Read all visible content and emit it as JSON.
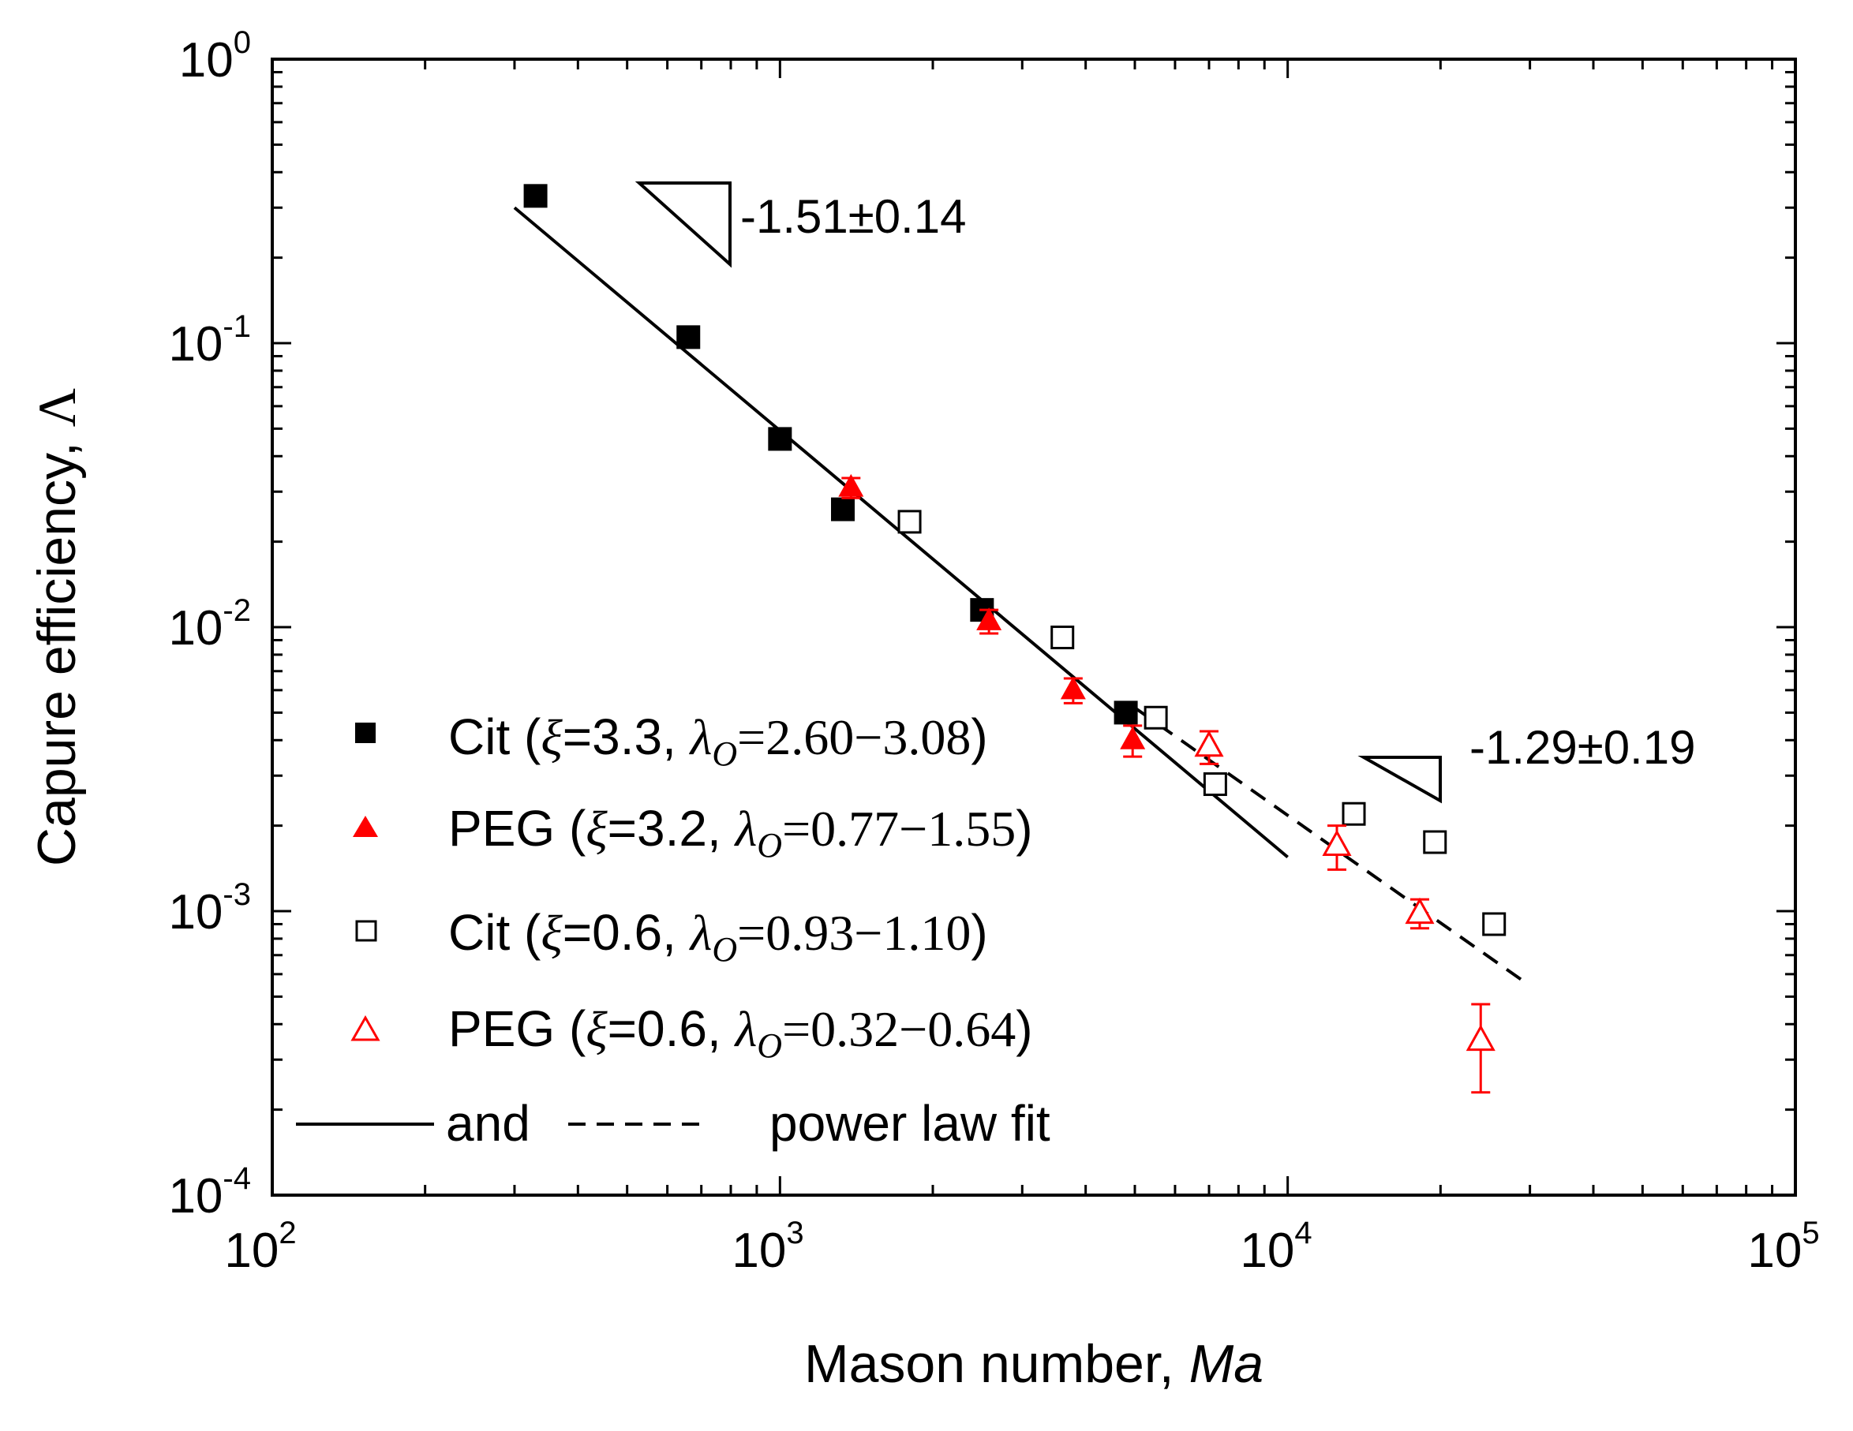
{
  "chart_data": {
    "type": "scatter",
    "xscale": "log",
    "yscale": "log",
    "xlabel": "Mason number, ",
    "xlabel_italic": "Ma",
    "ylabel": "Capure efficiency, ",
    "ylabel_symbol": "Λ",
    "xlim": [
      100,
      100000
    ],
    "ylim": [
      0.0001,
      1
    ],
    "x_ticks": [
      {
        "value": 100,
        "base": "10",
        "exp": "2"
      },
      {
        "value": 1000,
        "base": "10",
        "exp": "3"
      },
      {
        "value": 10000,
        "base": "10",
        "exp": "4"
      },
      {
        "value": 100000,
        "base": "10",
        "exp": "5"
      }
    ],
    "y_ticks": [
      {
        "value": 1,
        "base": "10",
        "exp": "0"
      },
      {
        "value": 0.1,
        "base": "10",
        "exp": "-1"
      },
      {
        "value": 0.01,
        "base": "10",
        "exp": "-2"
      },
      {
        "value": 0.001,
        "base": "10",
        "exp": "-3"
      },
      {
        "value": 0.0001,
        "base": "10",
        "exp": "-4"
      }
    ],
    "series": [
      {
        "name": "Cit (ξ=3.3, λO=2.60−3.08)",
        "label_prefix": "Cit (",
        "xi_value": "=3.3, ",
        "lambda_value": "=2.60−3.08",
        "label_suffix": ")",
        "marker": "filled-square",
        "color": "#000000",
        "points": [
          {
            "x": 330,
            "y": 0.33
          },
          {
            "x": 660,
            "y": 0.105
          },
          {
            "x": 1000,
            "y": 0.046
          },
          {
            "x": 1330,
            "y": 0.026
          },
          {
            "x": 2500,
            "y": 0.0115
          },
          {
            "x": 4800,
            "y": 0.005
          }
        ]
      },
      {
        "name": "PEG (ξ=3.2, λO=0.77−1.55)",
        "label_prefix": "PEG (",
        "xi_value": "=3.2, ",
        "lambda_value": "=0.77−1.55",
        "label_suffix": ")",
        "marker": "filled-triangle",
        "color": "#ff0000",
        "points": [
          {
            "x": 1380,
            "y": 0.031,
            "yerr": [
              0.0285,
              0.0335
            ]
          },
          {
            "x": 2580,
            "y": 0.0105,
            "yerr": [
              0.0095,
              0.0115
            ]
          },
          {
            "x": 3780,
            "y": 0.006,
            "yerr": [
              0.0054,
              0.0066
            ]
          },
          {
            "x": 4950,
            "y": 0.004,
            "yerr": [
              0.0035,
              0.0045
            ]
          }
        ]
      },
      {
        "name": "Cit (ξ=0.6, λO=0.93−1.10)",
        "label_prefix": "Cit (",
        "xi_value": "=0.6, ",
        "lambda_value": "=0.93−1.10",
        "label_suffix": ")",
        "marker": "open-square",
        "color": "#000000",
        "points": [
          {
            "x": 1800,
            "y": 0.0235
          },
          {
            "x": 3600,
            "y": 0.0092
          },
          {
            "x": 5500,
            "y": 0.0048
          },
          {
            "x": 7200,
            "y": 0.0028
          },
          {
            "x": 13500,
            "y": 0.0022
          },
          {
            "x": 19500,
            "y": 0.00175
          },
          {
            "x": 25500,
            "y": 0.0009
          }
        ]
      },
      {
        "name": "PEG (ξ=0.6, λO=0.32−0.64)",
        "label_prefix": "PEG (",
        "xi_value": "=0.6, ",
        "lambda_value": "=0.32−0.64",
        "label_suffix": ")",
        "marker": "open-triangle",
        "color": "#ff0000",
        "points": [
          {
            "x": 7000,
            "y": 0.0038,
            "yerr": [
              0.0033,
              0.0043
            ]
          },
          {
            "x": 12500,
            "y": 0.0017,
            "yerr": [
              0.0014,
              0.002
            ]
          },
          {
            "x": 18200,
            "y": 0.00098,
            "yerr": [
              0.00087,
              0.0011
            ]
          },
          {
            "x": 24000,
            "y": 0.00035,
            "yerr": [
              0.00023,
              0.00047
            ]
          }
        ]
      }
    ],
    "fits": [
      {
        "name": "power law fit (solid)",
        "style": "solid",
        "x": [
          300,
          10000
        ],
        "y": [
          0.3,
          0.00155
        ]
      },
      {
        "name": "power law fit (dashed)",
        "style": "dashed",
        "x": [
          5000,
          29000
        ],
        "y": [
          0.0052,
          0.00057
        ]
      }
    ],
    "annotations": [
      {
        "text": "-1.51±0.14",
        "slope_of": "solid"
      },
      {
        "text": "-1.29±0.19",
        "slope_of": "dashed"
      }
    ],
    "legend": {
      "position": "bottom-left",
      "fit_label_and": "and",
      "fit_label_text": "power law fit",
      "xi_symbol": "ξ",
      "lambda_symbol": "λ",
      "lambda_subscript": "O"
    }
  }
}
